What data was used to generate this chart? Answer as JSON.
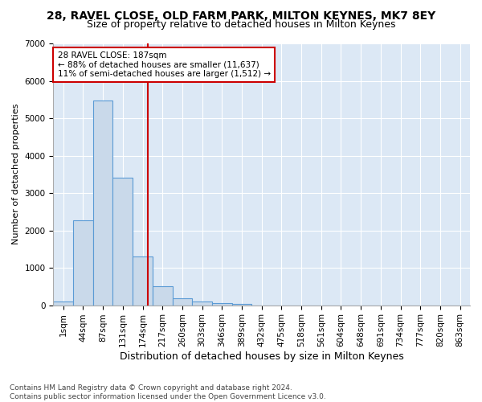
{
  "title1": "28, RAVEL CLOSE, OLD FARM PARK, MILTON KEYNES, MK7 8EY",
  "title2": "Size of property relative to detached houses in Milton Keynes",
  "xlabel": "Distribution of detached houses by size in Milton Keynes",
  "ylabel": "Number of detached properties",
  "categories": [
    "1sqm",
    "44sqm",
    "87sqm",
    "131sqm",
    "174sqm",
    "217sqm",
    "260sqm",
    "303sqm",
    "346sqm",
    "389sqm",
    "432sqm",
    "475sqm",
    "518sqm",
    "561sqm",
    "604sqm",
    "648sqm",
    "691sqm",
    "734sqm",
    "777sqm",
    "820sqm",
    "863sqm"
  ],
  "values": [
    100,
    2280,
    5480,
    3400,
    1310,
    500,
    175,
    90,
    60,
    40,
    0,
    0,
    0,
    0,
    0,
    0,
    0,
    0,
    0,
    0,
    0
  ],
  "bar_color": "#c9d9ea",
  "bar_edge_color": "#5b9bd5",
  "vline_x": 4.28,
  "vline_color": "#cc0000",
  "annotation_title": "28 RAVEL CLOSE: 187sqm",
  "annotation_line1": "← 88% of detached houses are smaller (11,637)",
  "annotation_line2": "11% of semi-detached houses are larger (1,512) →",
  "annotation_box_color": "#ffffff",
  "annotation_box_edge": "#cc0000",
  "ylim": [
    0,
    7000
  ],
  "background_color": "#dce8f5",
  "fig_background": "#ffffff",
  "footer1": "Contains HM Land Registry data © Crown copyright and database right 2024.",
  "footer2": "Contains public sector information licensed under the Open Government Licence v3.0.",
  "grid_color": "#ffffff",
  "title1_fontsize": 10,
  "title2_fontsize": 9,
  "xlabel_fontsize": 9,
  "ylabel_fontsize": 8,
  "tick_fontsize": 7.5,
  "footer_fontsize": 6.5
}
